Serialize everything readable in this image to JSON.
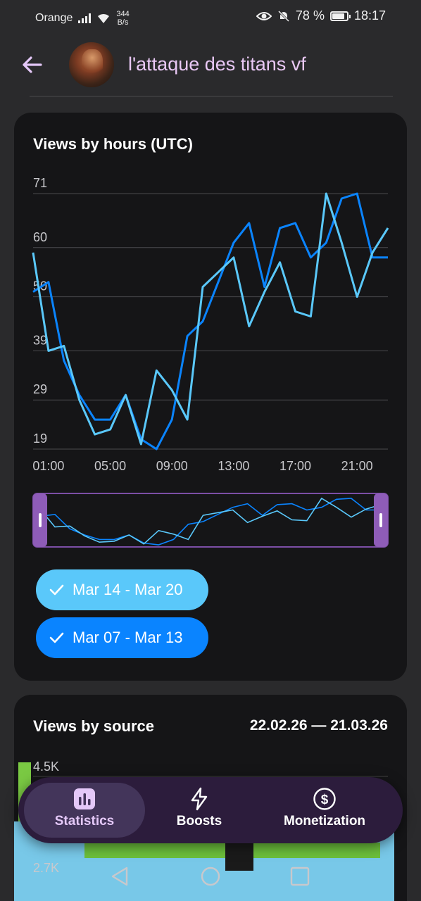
{
  "status_bar": {
    "carrier": "Orange",
    "net_speed_value": "344",
    "net_speed_unit": "B/s",
    "battery": "78 %",
    "time": "18:17"
  },
  "header": {
    "title": "l'attaque des titans vf"
  },
  "views_by_hours": {
    "title": "Views by hours (UTC)",
    "legend": [
      {
        "label": "Mar 14 - Mar 20",
        "color": "#5ac8fa"
      },
      {
        "label": "Mar 07 - Mar 13",
        "color": "#0a84ff"
      }
    ],
    "chart_data": {
      "type": "line",
      "title": "Views by hours (UTC)",
      "x": [
        "00:00",
        "01:00",
        "02:00",
        "03:00",
        "04:00",
        "05:00",
        "06:00",
        "07:00",
        "08:00",
        "09:00",
        "10:00",
        "11:00",
        "12:00",
        "13:00",
        "14:00",
        "15:00",
        "16:00",
        "17:00",
        "18:00",
        "19:00",
        "20:00",
        "21:00",
        "22:00",
        "23:00"
      ],
      "x_tick_labels": [
        "01:00",
        "05:00",
        "09:00",
        "13:00",
        "17:00",
        "21:00"
      ],
      "y_tick_labels": [
        "71",
        "60",
        "50",
        "39",
        "29",
        "19"
      ],
      "ylim": [
        19,
        71
      ],
      "grid": true,
      "series": [
        {
          "name": "Mar 14 - Mar 20",
          "color": "#5ac8fa",
          "values": [
            59,
            39,
            40,
            29,
            22,
            23,
            30,
            20,
            35,
            31,
            25,
            52,
            55,
            58,
            44,
            51,
            57,
            47,
            46,
            71,
            61,
            50,
            59,
            64
          ]
        },
        {
          "name": "Mar 07 - Mar 13",
          "color": "#0a84ff",
          "values": [
            51,
            53,
            37,
            30,
            25,
            25,
            30,
            21,
            19,
            25,
            42,
            45,
            53,
            61,
            65,
            52,
            64,
            65,
            58,
            61,
            70,
            71,
            58,
            58
          ]
        }
      ]
    }
  },
  "views_by_source": {
    "title": "Views by source",
    "date_range": "22.02.26 — 21.03.26",
    "y_tick_labels": [
      "4.5K",
      "2.7K"
    ]
  },
  "bottom_nav": {
    "items": [
      {
        "label": "Statistics",
        "icon": "bar-chart-icon",
        "active": true
      },
      {
        "label": "Boosts",
        "icon": "lightning-icon",
        "active": false
      },
      {
        "label": "Monetization",
        "icon": "dollar-icon",
        "active": false
      }
    ]
  }
}
